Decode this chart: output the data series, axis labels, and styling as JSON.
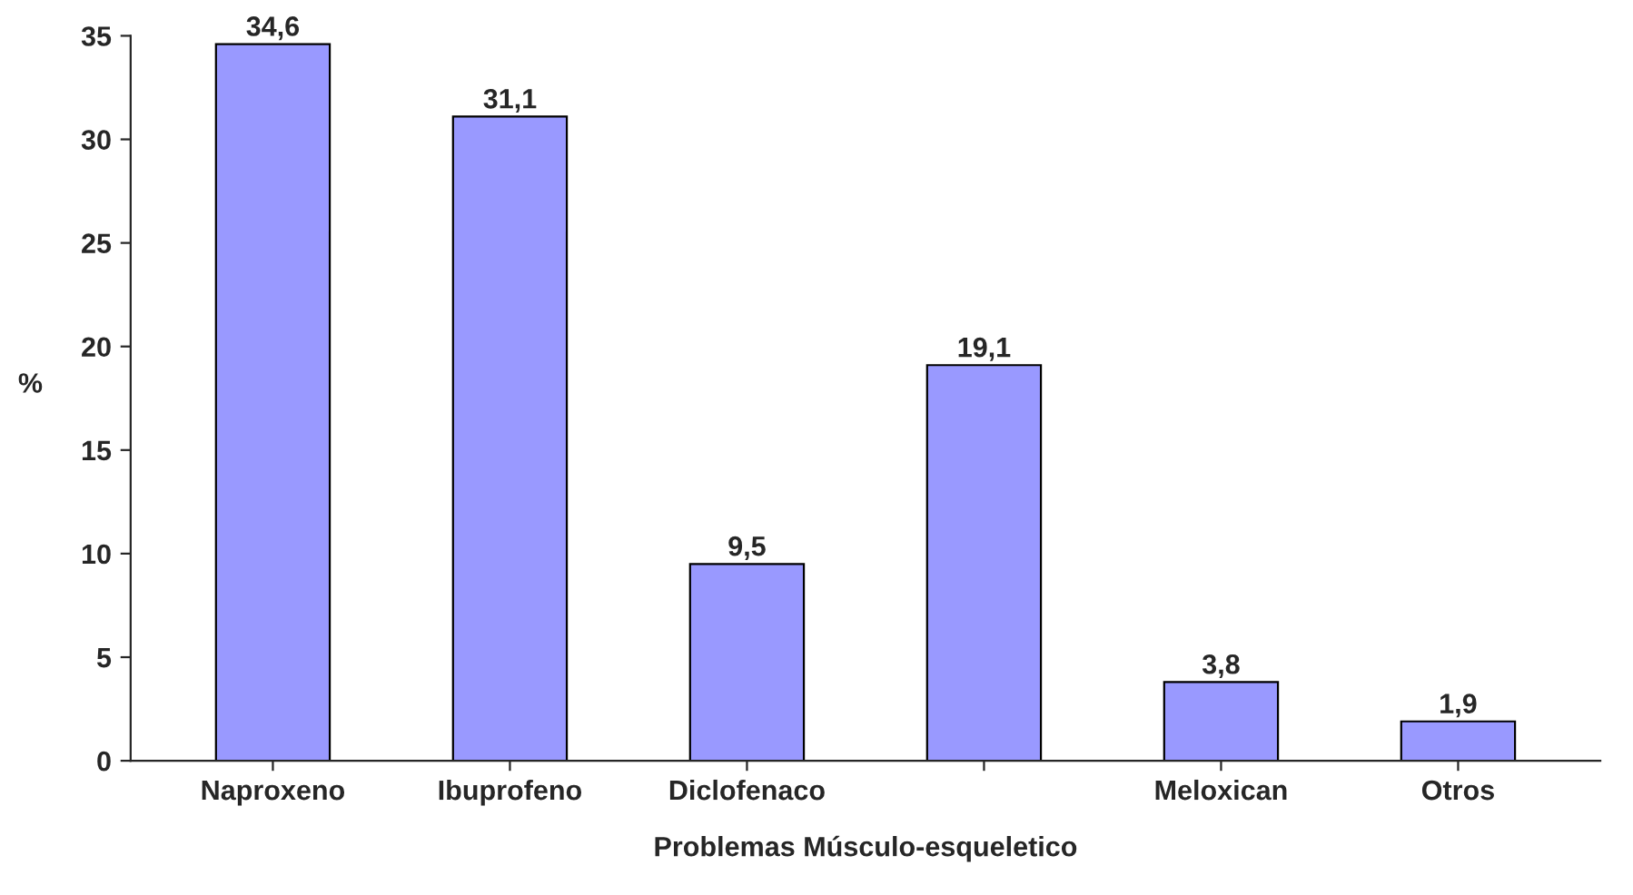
{
  "chart_data": {
    "type": "bar",
    "xlabel": "Problemas Músculo-esqueletico",
    "ylabel": "%",
    "categories": [
      "Naproxeno",
      "Ibuprofeno",
      "Diclofenaco",
      null,
      "Meloxican",
      "Otros"
    ],
    "values": [
      34.6,
      31.1,
      9.5,
      19.1,
      3.8,
      1.9
    ],
    "value_labels": [
      "34,6",
      "31,1",
      "9,5",
      "19,1",
      "3,8",
      "1,9"
    ],
    "color": "#9999ff",
    "ylim": [
      0,
      35
    ],
    "yticks": [
      0,
      5,
      10,
      15,
      20,
      25,
      30,
      35
    ],
    "grid": false,
    "legend": false
  }
}
